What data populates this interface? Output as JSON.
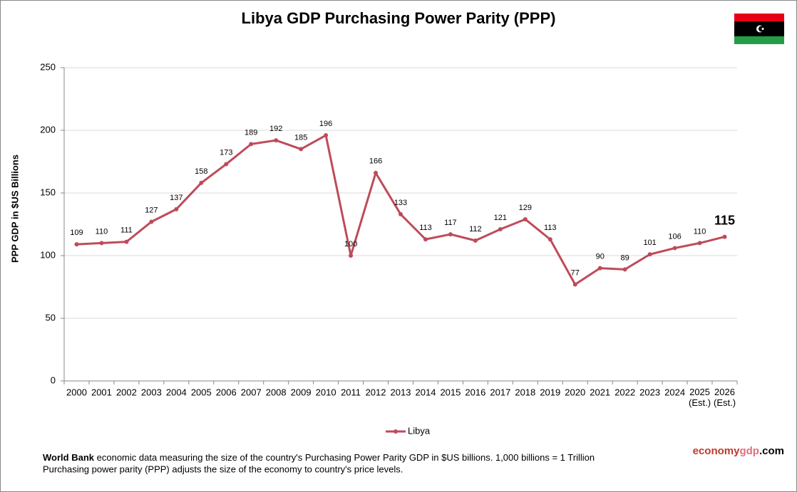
{
  "chart_data": {
    "type": "line",
    "title": "Libya GDP Purchasing Power Parity (PPP)",
    "y_label": "PPP GDP in $US Billions",
    "categories": [
      "2000",
      "2001",
      "2002",
      "2003",
      "2004",
      "2005",
      "2006",
      "2007",
      "2008",
      "2009",
      "2010",
      "2011",
      "2012",
      "2013",
      "2014",
      "2015",
      "2016",
      "2017",
      "2018",
      "2019",
      "2020",
      "2021",
      "2022",
      "2023",
      "2024",
      "2025 (Est.)",
      "2026 (Est.)"
    ],
    "series": [
      {
        "name": "Libya",
        "color": "#be4b5a",
        "values": [
          109,
          110,
          111,
          127,
          137,
          158,
          173,
          189,
          192,
          185,
          196,
          100,
          166,
          133,
          113,
          117,
          112,
          121,
          129,
          113,
          77,
          90,
          89,
          101,
          106,
          110,
          115
        ]
      }
    ],
    "ylim": [
      0,
      250
    ],
    "yticks": [
      0,
      50,
      100,
      150,
      200,
      250
    ],
    "grid": true,
    "legend": "bottom"
  },
  "footer": {
    "source": "World Bank",
    "line1": "economic data measuring the size of the country's Purchasing Power Parity GDP in $US billions. 1,000 billions = 1 Trillion",
    "line2": "Purchasing power parity (PPP) adjusts the size of the economy to country's price levels."
  },
  "brand": {
    "part1": "economy",
    "part2": "gdp",
    "part3": ".com"
  }
}
